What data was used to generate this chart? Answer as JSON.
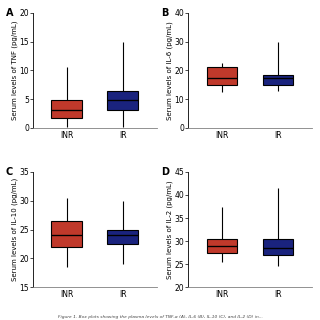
{
  "panels": [
    {
      "label": "A",
      "ylabel": "Serum levels of TNF (pg/mL)",
      "ylim": [
        0,
        20
      ],
      "yticks": [
        0,
        5,
        10,
        15,
        20
      ],
      "groups": [
        {
          "name": "INR",
          "color": "#c0392b",
          "whislo": 0.1,
          "q1": 1.8,
          "median": 3.2,
          "q3": 4.8,
          "whishi": 10.5
        },
        {
          "name": "IR",
          "color": "#1a237e",
          "whislo": 0.1,
          "q1": 3.2,
          "median": 4.8,
          "q3": 6.5,
          "whishi": 15.0
        }
      ]
    },
    {
      "label": "B",
      "ylabel": "Serum levels of IL-6 (pg/mL)",
      "ylim": [
        0,
        40
      ],
      "yticks": [
        0,
        10,
        20,
        30,
        40
      ],
      "groups": [
        {
          "name": "INR",
          "color": "#c0392b",
          "whislo": 12.5,
          "q1": 15.0,
          "median": 17.5,
          "q3": 21.0,
          "whishi": 22.5
        },
        {
          "name": "IR",
          "color": "#1a237e",
          "whislo": 13.0,
          "q1": 15.0,
          "median": 17.5,
          "q3": 18.5,
          "whishi": 30.0
        }
      ]
    },
    {
      "label": "C",
      "ylabel": "Serum levels of IL-10 (pg/mL)",
      "ylim": [
        15,
        35
      ],
      "yticks": [
        15,
        20,
        25,
        30,
        35
      ],
      "groups": [
        {
          "name": "INR",
          "color": "#c0392b",
          "whislo": 18.5,
          "q1": 22.0,
          "median": 24.0,
          "q3": 26.5,
          "whishi": 30.5
        },
        {
          "name": "IR",
          "color": "#1a237e",
          "whislo": 19.0,
          "q1": 22.5,
          "median": 24.0,
          "q3": 25.0,
          "whishi": 30.0
        }
      ]
    },
    {
      "label": "D",
      "ylabel": "Serum levels of IL-2 (pg/mL)",
      "ylim": [
        20,
        45
      ],
      "yticks": [
        20,
        25,
        30,
        35,
        40,
        45
      ],
      "groups": [
        {
          "name": "INR",
          "color": "#c0392b",
          "whislo": 25.5,
          "q1": 27.5,
          "median": 29.0,
          "q3": 30.5,
          "whishi": 37.5
        },
        {
          "name": "IR",
          "color": "#1a237e",
          "whislo": 24.5,
          "q1": 27.0,
          "median": 28.5,
          "q3": 30.5,
          "whishi": 41.5
        }
      ]
    }
  ],
  "background_color": "#ffffff",
  "box_width": 0.55,
  "linewidth": 0.8,
  "tick_fontsize": 5.5,
  "label_fontsize": 5.0,
  "panel_label_fontsize": 7,
  "caption": "Figure 1. Box plots showing the plasma levels of TNF-α (A), IL-6 (B), IL-10 (C), and IL-2 (D) in..."
}
